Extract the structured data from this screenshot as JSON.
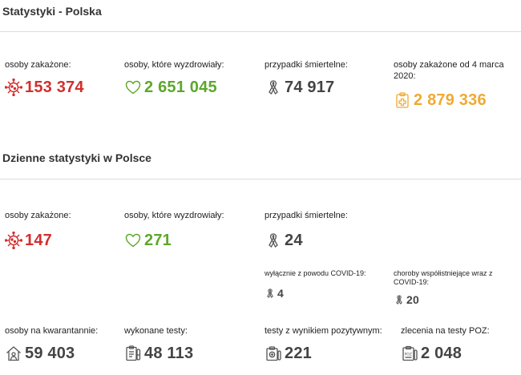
{
  "colors": {
    "red": "#d32e2e",
    "green": "#5ca829",
    "gray": "#444444",
    "orange": "#efaa33"
  },
  "poland": {
    "title": "Statystyki - Polska",
    "infected_label": "osoby zakażone:",
    "infected_value": "153 374",
    "recovered_label": "osoby, które wyzdrowiały:",
    "recovered_value": "2 651 045",
    "deaths_label": "przypadki śmiertelne:",
    "deaths_value": "74 917",
    "since_label": "osoby zakażone od 4 marca 2020:",
    "since_value": "2 879 336"
  },
  "daily": {
    "title": "Dzienne statystyki w Polsce",
    "infected_label": "osoby zakażone:",
    "infected_value": "147",
    "recovered_label": "osoby, które wyzdrowiały:",
    "recovered_value": "271",
    "deaths_label": "przypadki śmiertelne:",
    "deaths_value": "24",
    "covid_only_label": "wyłącznie z powodu COVID-19:",
    "covid_only_value": "4",
    "comorbid_label": "choroby współistniejące wraz z COVID-19:",
    "comorbid_value": "20",
    "quarantine_label": "osoby na kwarantannie:",
    "quarantine_value": "59 403",
    "tests_label": "wykonane testy:",
    "tests_value": "48 113",
    "positive_label": "testy z wynikiem pozytywnym:",
    "positive_value": "221",
    "poz_label": "zlecenia na testy POZ:",
    "poz_value": "2 048"
  },
  "icons": {
    "virus": "virus-icon",
    "heart": "heart-icon",
    "ribbon": "ribbon-icon",
    "clipboard": "medical-clipboard-icon",
    "house": "house-quarantine-icon",
    "tests": "tests-list-icon",
    "positive": "positive-test-icon",
    "poz": "poz-clipboard-icon"
  }
}
